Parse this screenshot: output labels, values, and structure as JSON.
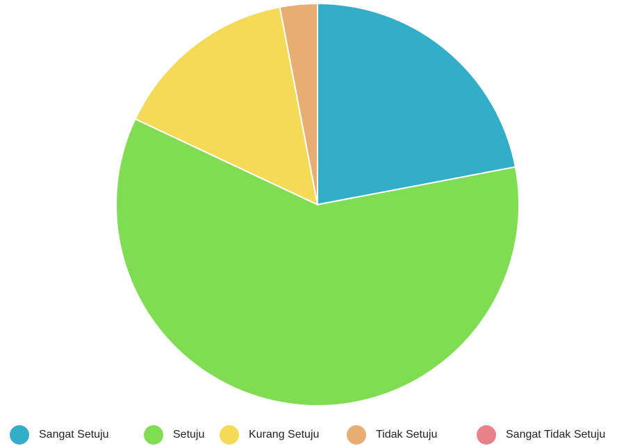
{
  "chart_data": {
    "type": "pie",
    "categories": [
      "Sangat Setuju",
      "Setuju",
      "Kurang Setuju",
      "Tidak Setuju",
      "Sangat Tidak Setuju"
    ],
    "values": [
      22,
      60,
      15,
      3,
      0
    ],
    "colors": [
      "#33aec8",
      "#80dc52",
      "#f5da57",
      "#e8ad72",
      "#e8818a"
    ],
    "legend": "bottom"
  }
}
